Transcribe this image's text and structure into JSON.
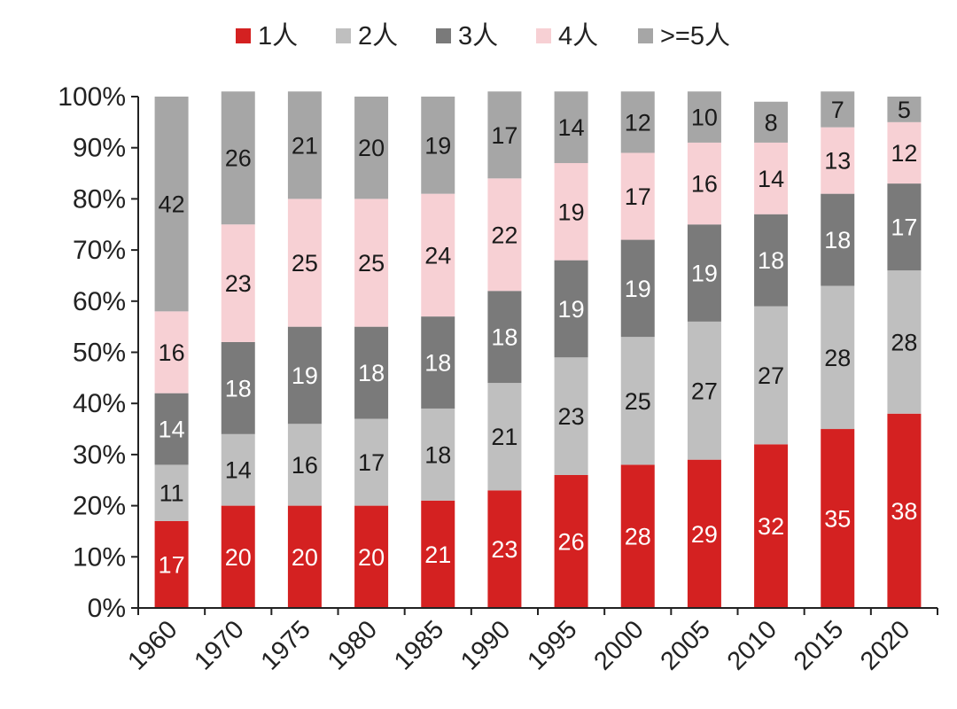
{
  "chart_data": {
    "type": "bar",
    "stacked": true,
    "title": "",
    "xlabel": "",
    "ylabel": "",
    "ylim": [
      0,
      100
    ],
    "y_ticks": [
      "0%",
      "10%",
      "20%",
      "30%",
      "40%",
      "50%",
      "60%",
      "70%",
      "80%",
      "90%",
      "100%"
    ],
    "grid": false,
    "legend_position": "top",
    "categories": [
      "1960",
      "1970",
      "1975",
      "1980",
      "1985",
      "1990",
      "1995",
      "2000",
      "2005",
      "2010",
      "2015",
      "2020"
    ],
    "series": [
      {
        "name": "1人",
        "color": "#d42121",
        "label_color": "#ffffff",
        "values": [
          17,
          20,
          20,
          20,
          21,
          23,
          26,
          28,
          29,
          32,
          35,
          38
        ]
      },
      {
        "name": "2人",
        "color": "#bfbfbf",
        "label_color": "#1a1a1a",
        "values": [
          11,
          14,
          16,
          17,
          18,
          21,
          23,
          25,
          27,
          27,
          28,
          28
        ]
      },
      {
        "name": "3人",
        "color": "#7a7a7a",
        "label_color": "#ffffff",
        "values": [
          14,
          18,
          19,
          18,
          18,
          18,
          19,
          19,
          19,
          18,
          18,
          17
        ]
      },
      {
        "name": "4人",
        "color": "#f7d0d4",
        "label_color": "#1a1a1a",
        "values": [
          16,
          23,
          25,
          25,
          24,
          22,
          19,
          17,
          16,
          14,
          13,
          12
        ]
      },
      {
        "name": ">=5人",
        "color": "#a6a6a6",
        "label_color": "#1a1a1a",
        "values": [
          42,
          26,
          21,
          20,
          19,
          17,
          14,
          12,
          10,
          8,
          7,
          5
        ]
      }
    ]
  }
}
